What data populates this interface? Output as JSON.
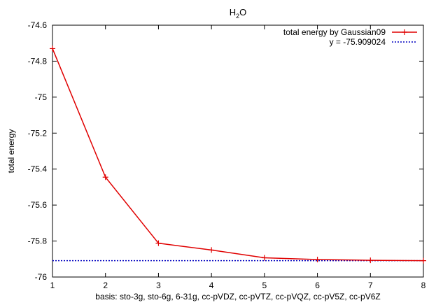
{
  "chart_data": {
    "type": "line",
    "title_main": "H",
    "title_sub": "2",
    "title_tail": "O",
    "xlabel": "basis: sto-3g, sto-6g, 6-31g, cc-pVDZ, cc-pVTZ, cc-pVQZ, cc-pV5Z, cc-pV6Z",
    "ylabel": "total energy",
    "xlim": [
      1,
      8
    ],
    "ylim": [
      -76,
      -74.6
    ],
    "x_ticks": [
      1,
      2,
      3,
      4,
      5,
      6,
      7,
      8
    ],
    "x_tick_labels": [
      "1",
      "2",
      "3",
      "4",
      "5",
      "6",
      "7",
      "8"
    ],
    "y_ticks": [
      -76,
      -75.8,
      -75.6,
      -75.4,
      -75.2,
      -75,
      -74.8,
      -74.6
    ],
    "y_tick_labels": [
      "-76",
      "-75.8",
      "-75.6",
      "-75.4",
      "-75.2",
      "-75",
      "-74.8",
      "-74.6"
    ],
    "grid": false,
    "legend_position": "top-right",
    "series": [
      {
        "name": "total energy by Gaussian09",
        "color": "#e00000",
        "style": "solid",
        "marker": "plus",
        "x": [
          1,
          2,
          3,
          4,
          5,
          6,
          7,
          8
        ],
        "y": [
          -74.73,
          -75.445,
          -75.812,
          -75.85,
          -75.893,
          -75.903,
          -75.907,
          -75.909
        ]
      },
      {
        "name": "y =  -75.909024",
        "color": "#0000c0",
        "style": "dotted",
        "constant": -75.909024
      }
    ]
  }
}
